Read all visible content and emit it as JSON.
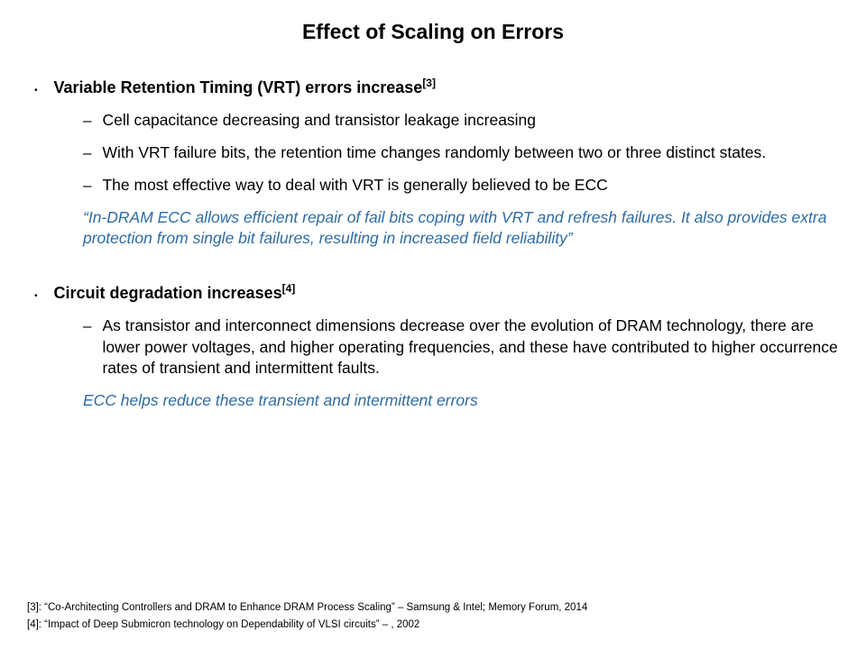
{
  "title": "Effect of Scaling on Errors",
  "section1": {
    "heading": "Variable Retention Timing (VRT) errors increase",
    "ref": "[3]",
    "items": [
      "Cell capacitance decreasing and transistor leakage increasing",
      "With VRT failure bits, the retention time changes randomly between two or three distinct states.",
      "The most effective way to deal with VRT is generally believed to be ECC"
    ],
    "quote": "“In-DRAM ECC allows efficient repair of fail bits coping with VRT and refresh failures. It also provides extra protection from single bit failures, resulting in increased field reliability”"
  },
  "section2": {
    "heading": "Circuit degradation increases",
    "ref": "[4]",
    "items": [
      "As transistor and interconnect dimensions decrease over the evolution of DRAM technology, there are lower power voltages, and higher operating frequencies, and these have contributed to higher occurrence rates of transient and intermittent faults."
    ],
    "quote": "ECC helps reduce these transient and intermittent errors"
  },
  "refs": {
    "r3": "[3]: “Co-Architecting Controllers and DRAM to Enhance DRAM Process Scaling” – Samsung & Intel; Memory Forum, 2014",
    "r4": "[4]: “Impact of Deep Submicron technology on Dependability of VLSI circuits” – , 2002"
  },
  "colors": {
    "text": "#000000",
    "quote": "#2e6ca4",
    "background": "#ffffff"
  }
}
